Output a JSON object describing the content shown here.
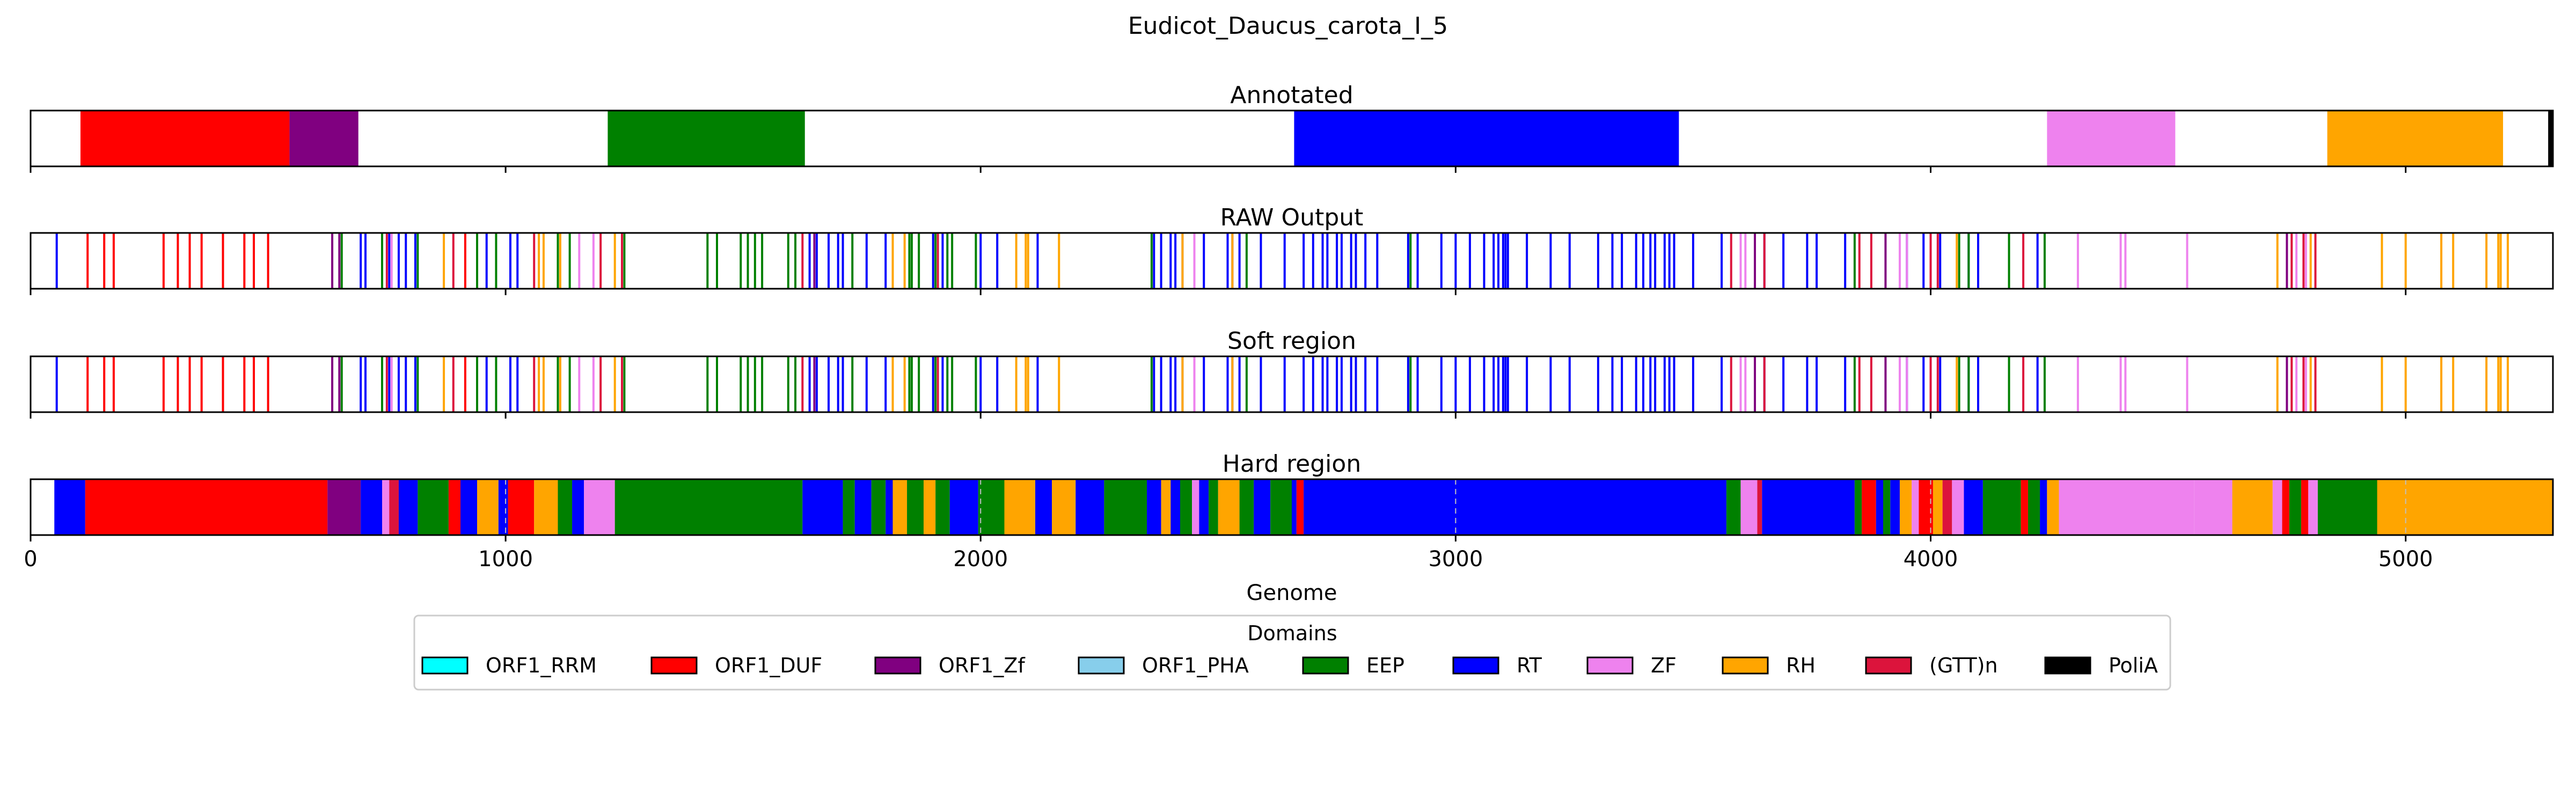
{
  "chart_data": {
    "type": "genome-track",
    "title": "Eudicot_Daucus_carota_I_5",
    "xlabel": "Genome",
    "xlim": [
      0,
      5310
    ],
    "xticks": [
      0,
      1000,
      2000,
      3000,
      4000,
      5000
    ],
    "xtick_labels": [
      "0",
      "1000",
      "2000",
      "3000",
      "4000",
      "5000"
    ],
    "grid": false,
    "legend": {
      "title": "Domains",
      "placement": "bottom-center",
      "entries": [
        {
          "label": "ORF1_RRM",
          "color": "#00ffff"
        },
        {
          "label": "ORF1_DUF",
          "color": "#ff0000"
        },
        {
          "label": "ORF1_Zf",
          "color": "#800080"
        },
        {
          "label": "ORF1_PHA",
          "color": "#87ceeb"
        },
        {
          "label": "EEP",
          "color": "#008000"
        },
        {
          "label": "RT",
          "color": "#0000ff"
        },
        {
          "label": "ZF",
          "color": "#ee82ee"
        },
        {
          "label": "RH",
          "color": "#ffa500"
        },
        {
          "label": "(GTT)n",
          "color": "#dc143c"
        },
        {
          "label": "PoliA",
          "color": "#000000"
        }
      ]
    },
    "panels": [
      {
        "title": "Annotated",
        "kind": "segments",
        "segments": [
          {
            "start": 105,
            "end": 545,
            "domain": "ORF1_DUF"
          },
          {
            "start": 545,
            "end": 690,
            "domain": "ORF1_Zf"
          },
          {
            "start": 1215,
            "end": 1630,
            "domain": "EEP"
          },
          {
            "start": 2660,
            "end": 3470,
            "domain": "RT"
          },
          {
            "start": 4245,
            "end": 4515,
            "domain": "ZF"
          },
          {
            "start": 4835,
            "end": 5205,
            "domain": "RH"
          },
          {
            "start": 5300,
            "end": 5310,
            "domain": "PoliA"
          }
        ]
      },
      {
        "title": "RAW Output",
        "kind": "lines",
        "lines": [
          {
            "domain": "RT",
            "positions": [
              55,
              695,
              705,
              755,
              775,
              790,
              810,
              960,
              1010,
              1025,
              1640,
              1655,
              1680,
              1700,
              1710,
              1760,
              1800,
              1900,
              1920,
              2000,
              2035,
              2120,
              2365,
              2380,
              2400,
              2410,
              2425,
              2470,
              2520,
              2530,
              2545,
              2590,
              2640,
              2680,
              2700,
              2720,
              2730,
              2750,
              2760,
              2780,
              2790,
              2810,
              2835,
              2900,
              2920,
              2970,
              3000,
              3030,
              3060,
              3080,
              3090,
              3100,
              3105,
              3110,
              3150,
              3200,
              3240,
              3300,
              3330,
              3350,
              3380,
              3395,
              3410,
              3420,
              3440,
              3450,
              3460,
              3500,
              3560,
              3650,
              3690,
              3740,
              3760,
              3820,
              3950,
              3985,
              4020,
              4080,
              4100,
              4225
            ]
          },
          {
            "domain": "ORF1_DUF",
            "positions": [
              120,
              155,
              175,
              280,
              310,
              335,
              360,
              405,
              450,
              470,
              500,
              915
            ]
          },
          {
            "domain": "ORF1_Zf",
            "positions": [
              635,
              650,
              1650,
              3630,
              3905,
              4750
            ]
          },
          {
            "domain": "EEP",
            "positions": [
              655,
              740,
              815,
              940,
              980,
              1110,
              1135,
              1250,
              1425,
              1445,
              1495,
              1510,
              1525,
              1540,
              1595,
              1610,
              1730,
              1850,
              1855,
              1870,
              1905,
              1930,
              1940,
              1990,
              2360,
              2560,
              2905,
              3840,
              4060,
              4080,
              4165,
              4240
            ]
          },
          {
            "domain": "ZF",
            "positions": [
              760,
              1155,
              1185,
              2450,
              3600,
              3610,
              3935,
              3950,
              4310,
              4400,
              4410,
              4540,
              4770,
              4790
            ]
          },
          {
            "domain": "RH",
            "positions": [
              870,
              1070,
              1080,
              1115,
              1230,
              1815,
              1840,
              2075,
              2095,
              2100,
              2165,
              2425,
              2530,
              4055,
              4730,
              4800,
              4950,
              5000,
              5075,
              5100,
              5170,
              5195,
              5200,
              5215
            ]
          },
          {
            "domain": "(GTT)n",
            "positions": [
              750,
              890,
              1060,
              1200,
              1245,
              1625,
              1910,
              3580,
              3650,
              3850,
              3875,
              4000,
              4015,
              4195,
              4760,
              4785,
              4810
            ]
          }
        ]
      },
      {
        "title": "Soft region",
        "kind": "lines",
        "same_as": "RAW Output"
      },
      {
        "title": "Hard region",
        "kind": "segments",
        "segments": [
          {
            "start": 50,
            "end": 115,
            "domain": "RT"
          },
          {
            "start": 115,
            "end": 625,
            "domain": "ORF1_DUF"
          },
          {
            "start": 625,
            "end": 695,
            "domain": "ORF1_Zf"
          },
          {
            "start": 695,
            "end": 740,
            "domain": "RT"
          },
          {
            "start": 740,
            "end": 755,
            "domain": "ZF"
          },
          {
            "start": 755,
            "end": 775,
            "domain": "(GTT)n"
          },
          {
            "start": 775,
            "end": 815,
            "domain": "RT"
          },
          {
            "start": 815,
            "end": 880,
            "domain": "EEP"
          },
          {
            "start": 880,
            "end": 905,
            "domain": "ORF1_DUF"
          },
          {
            "start": 905,
            "end": 940,
            "domain": "RT"
          },
          {
            "start": 940,
            "end": 985,
            "domain": "RH"
          },
          {
            "start": 985,
            "end": 1005,
            "domain": "RT"
          },
          {
            "start": 1005,
            "end": 1060,
            "domain": "ORF1_DUF"
          },
          {
            "start": 1060,
            "end": 1110,
            "domain": "RH"
          },
          {
            "start": 1110,
            "end": 1140,
            "domain": "EEP"
          },
          {
            "start": 1140,
            "end": 1165,
            "domain": "RT"
          },
          {
            "start": 1165,
            "end": 1230,
            "domain": "ZF"
          },
          {
            "start": 1230,
            "end": 1625,
            "domain": "EEP"
          },
          {
            "start": 1625,
            "end": 1710,
            "domain": "RT"
          },
          {
            "start": 1710,
            "end": 1735,
            "domain": "EEP"
          },
          {
            "start": 1735,
            "end": 1770,
            "domain": "RT"
          },
          {
            "start": 1770,
            "end": 1800,
            "domain": "EEP"
          },
          {
            "start": 1800,
            "end": 1815,
            "domain": "RT"
          },
          {
            "start": 1815,
            "end": 1845,
            "domain": "RH"
          },
          {
            "start": 1845,
            "end": 1880,
            "domain": "EEP"
          },
          {
            "start": 1880,
            "end": 1905,
            "domain": "RH"
          },
          {
            "start": 1905,
            "end": 1935,
            "domain": "EEP"
          },
          {
            "start": 1935,
            "end": 1995,
            "domain": "RT"
          },
          {
            "start": 1995,
            "end": 2050,
            "domain": "EEP"
          },
          {
            "start": 2050,
            "end": 2115,
            "domain": "RH"
          },
          {
            "start": 2115,
            "end": 2150,
            "domain": "RT"
          },
          {
            "start": 2150,
            "end": 2200,
            "domain": "RH"
          },
          {
            "start": 2200,
            "end": 2260,
            "domain": "RT"
          },
          {
            "start": 2260,
            "end": 2350,
            "domain": "EEP"
          },
          {
            "start": 2350,
            "end": 2380,
            "domain": "RT"
          },
          {
            "start": 2380,
            "end": 2400,
            "domain": "RH"
          },
          {
            "start": 2400,
            "end": 2420,
            "domain": "RT"
          },
          {
            "start": 2420,
            "end": 2445,
            "domain": "EEP"
          },
          {
            "start": 2445,
            "end": 2460,
            "domain": "ZF"
          },
          {
            "start": 2460,
            "end": 2480,
            "domain": "RT"
          },
          {
            "start": 2480,
            "end": 2500,
            "domain": "EEP"
          },
          {
            "start": 2500,
            "end": 2545,
            "domain": "RH"
          },
          {
            "start": 2545,
            "end": 2575,
            "domain": "EEP"
          },
          {
            "start": 2575,
            "end": 2610,
            "domain": "RT"
          },
          {
            "start": 2610,
            "end": 2655,
            "domain": "EEP"
          },
          {
            "start": 2655,
            "end": 2665,
            "domain": "RT"
          },
          {
            "start": 2665,
            "end": 2680,
            "domain": "ORF1_DUF"
          },
          {
            "start": 2680,
            "end": 3570,
            "domain": "RT"
          },
          {
            "start": 3570,
            "end": 3600,
            "domain": "EEP"
          },
          {
            "start": 3600,
            "end": 3635,
            "domain": "ZF"
          },
          {
            "start": 3635,
            "end": 3645,
            "domain": "(GTT)n"
          },
          {
            "start": 3645,
            "end": 3840,
            "domain": "RT"
          },
          {
            "start": 3840,
            "end": 3855,
            "domain": "EEP"
          },
          {
            "start": 3855,
            "end": 3885,
            "domain": "ORF1_DUF"
          },
          {
            "start": 3885,
            "end": 3900,
            "domain": "RT"
          },
          {
            "start": 3900,
            "end": 3915,
            "domain": "EEP"
          },
          {
            "start": 3915,
            "end": 3935,
            "domain": "RT"
          },
          {
            "start": 3935,
            "end": 3960,
            "domain": "RH"
          },
          {
            "start": 3960,
            "end": 3975,
            "domain": "ZF"
          },
          {
            "start": 3975,
            "end": 4005,
            "domain": "ORF1_DUF"
          },
          {
            "start": 4005,
            "end": 4025,
            "domain": "RH"
          },
          {
            "start": 4025,
            "end": 4045,
            "domain": "(GTT)n"
          },
          {
            "start": 4045,
            "end": 4070,
            "domain": "ZF"
          },
          {
            "start": 4070,
            "end": 4110,
            "domain": "RT"
          },
          {
            "start": 4110,
            "end": 4190,
            "domain": "EEP"
          },
          {
            "start": 4190,
            "end": 4205,
            "domain": "ORF1_DUF"
          },
          {
            "start": 4205,
            "end": 4230,
            "domain": "EEP"
          },
          {
            "start": 4230,
            "end": 4245,
            "domain": "RT"
          },
          {
            "start": 4245,
            "end": 4270,
            "domain": "RH"
          },
          {
            "start": 4270,
            "end": 4555,
            "domain": "ZF"
          },
          {
            "start": 4555,
            "end": 4635,
            "domain": "ZF"
          },
          {
            "start": 4635,
            "end": 4720,
            "domain": "RH"
          },
          {
            "start": 4720,
            "end": 4740,
            "domain": "ZF"
          },
          {
            "start": 4740,
            "end": 4755,
            "domain": "ORF1_DUF"
          },
          {
            "start": 4755,
            "end": 4780,
            "domain": "EEP"
          },
          {
            "start": 4780,
            "end": 4795,
            "domain": "ORF1_DUF"
          },
          {
            "start": 4795,
            "end": 4815,
            "domain": "ZF"
          },
          {
            "start": 4815,
            "end": 4940,
            "domain": "EEP"
          },
          {
            "start": 4940,
            "end": 5310,
            "domain": "RH"
          }
        ]
      }
    ]
  }
}
